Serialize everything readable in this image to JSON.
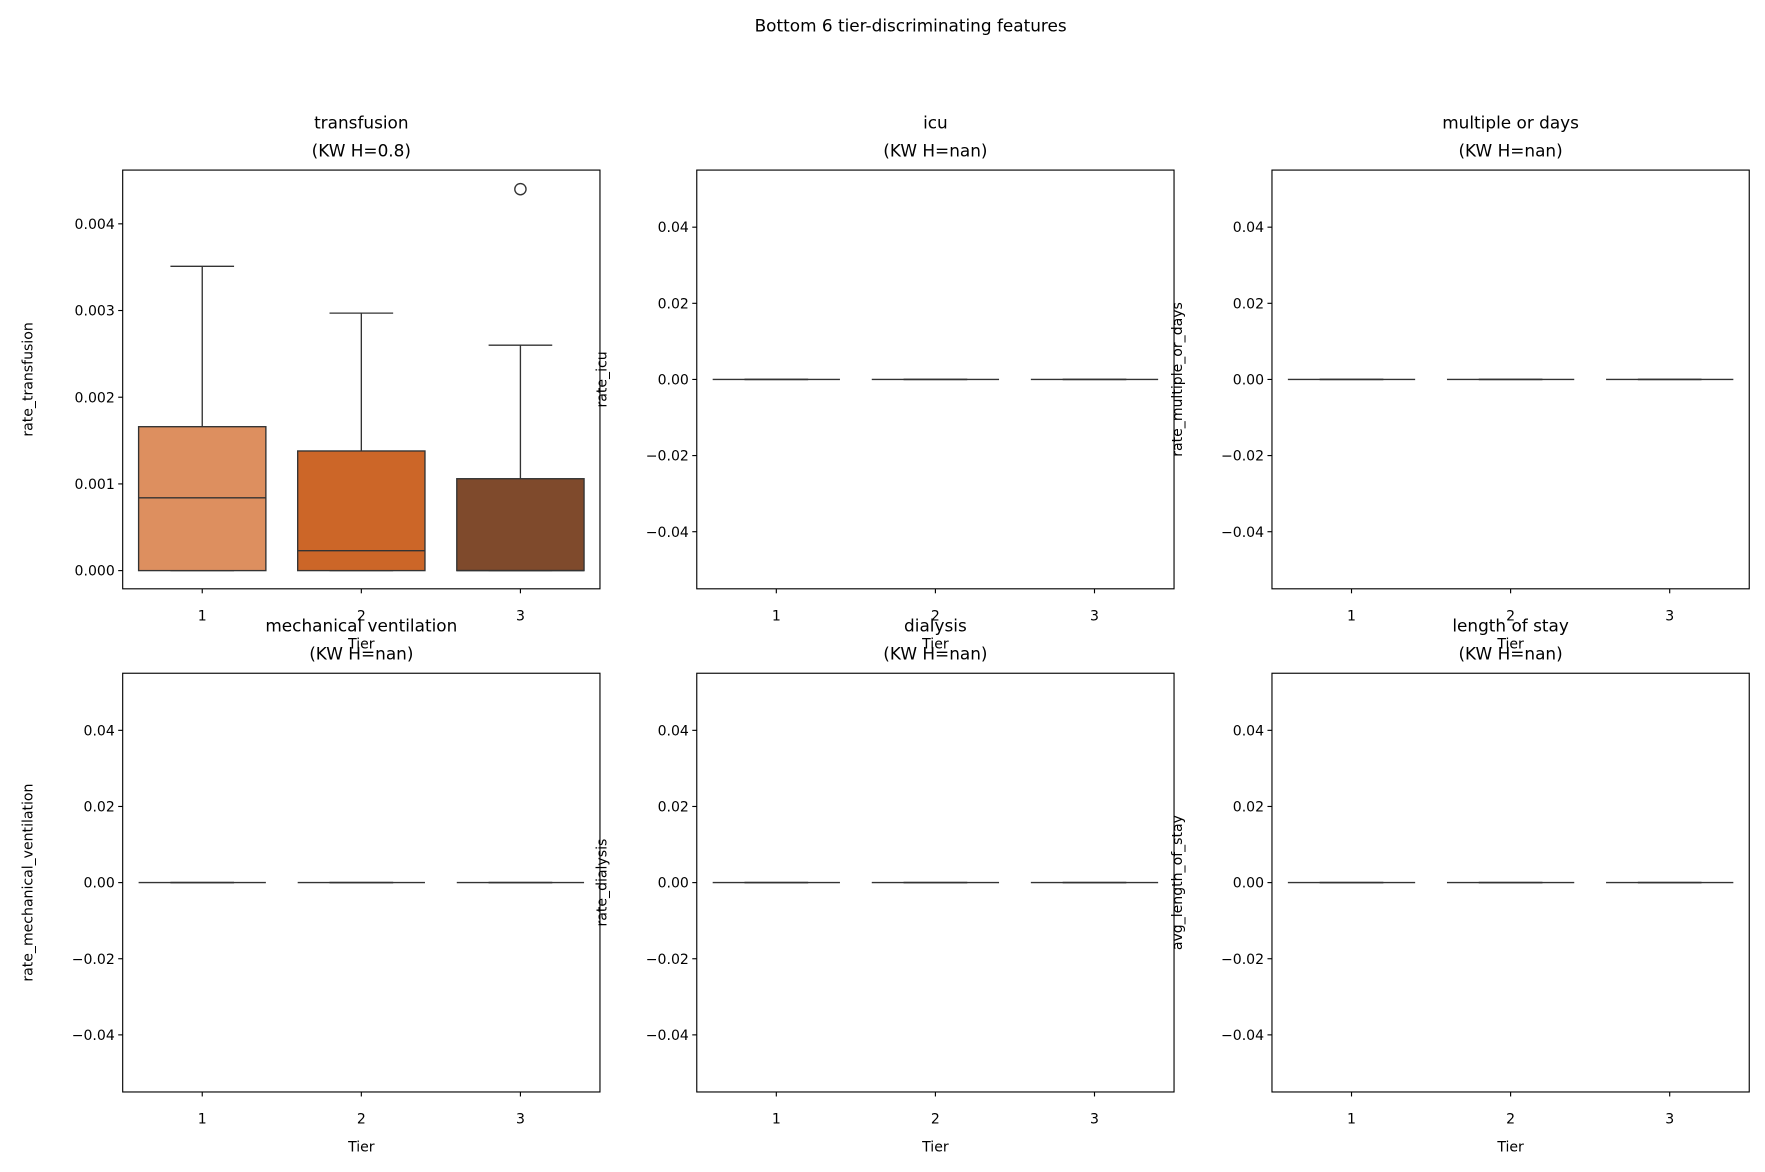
{
  "title": "Bottom 6 tier-discriminating features",
  "chart_data": [
    {
      "type": "box",
      "title": "transfusion",
      "subtitle": "(KW H=0.8)",
      "xlabel": "Tier",
      "ylabel": "rate_transfusion",
      "categories": [
        "1",
        "2",
        "3"
      ],
      "ylim": [
        -0.00021,
        0.00462
      ],
      "yticks": [
        {
          "value": 0,
          "label": "0.000"
        },
        {
          "value": 0.001,
          "label": "0.001"
        },
        {
          "value": 0.002,
          "label": "0.002"
        },
        {
          "value": 0.003,
          "label": "0.003"
        },
        {
          "value": 0.004,
          "label": "0.004"
        }
      ],
      "boxes": [
        {
          "whislo": 0,
          "q1": 0,
          "med": 0.00084,
          "q3": 0.00166,
          "whishi": 0.00351,
          "fliers": [],
          "color": "#dd8f5f"
        },
        {
          "whislo": 0,
          "q1": 0,
          "med": 0.00023,
          "q3": 0.00138,
          "whishi": 0.00297,
          "fliers": [],
          "color": "#cc6628"
        },
        {
          "whislo": 0,
          "q1": 0,
          "med": 0,
          "q3": 0.00106,
          "whishi": 0.0026,
          "fliers": [
            0.0044
          ],
          "color": "#7f4a2c"
        }
      ]
    },
    {
      "type": "box",
      "title": "icu",
      "subtitle": "(KW H=nan)",
      "xlabel": "Tier",
      "ylabel": "rate_icu",
      "categories": [
        "1",
        "2",
        "3"
      ],
      "ylim": [
        -0.055,
        0.055
      ],
      "yticks": [
        {
          "value": -0.04,
          "label": "−0.04"
        },
        {
          "value": -0.02,
          "label": "−0.02"
        },
        {
          "value": 0,
          "label": "0.00"
        },
        {
          "value": 0.02,
          "label": "0.02"
        },
        {
          "value": 0.04,
          "label": "0.04"
        }
      ],
      "boxes": [
        {
          "whislo": 0,
          "q1": 0,
          "med": 0,
          "q3": 0,
          "whishi": 0,
          "fliers": []
        },
        {
          "whislo": 0,
          "q1": 0,
          "med": 0,
          "q3": 0,
          "whishi": 0,
          "fliers": []
        },
        {
          "whislo": 0,
          "q1": 0,
          "med": 0,
          "q3": 0,
          "whishi": 0,
          "fliers": []
        }
      ]
    },
    {
      "type": "box",
      "title": "multiple or days",
      "subtitle": "(KW H=nan)",
      "xlabel": "Tier",
      "ylabel": "rate_multiple_or_days",
      "categories": [
        "1",
        "2",
        "3"
      ],
      "ylim": [
        -0.055,
        0.055
      ],
      "yticks": [
        {
          "value": -0.04,
          "label": "−0.04"
        },
        {
          "value": -0.02,
          "label": "−0.02"
        },
        {
          "value": 0,
          "label": "0.00"
        },
        {
          "value": 0.02,
          "label": "0.02"
        },
        {
          "value": 0.04,
          "label": "0.04"
        }
      ],
      "boxes": [
        {
          "whislo": 0,
          "q1": 0,
          "med": 0,
          "q3": 0,
          "whishi": 0,
          "fliers": []
        },
        {
          "whislo": 0,
          "q1": 0,
          "med": 0,
          "q3": 0,
          "whishi": 0,
          "fliers": []
        },
        {
          "whislo": 0,
          "q1": 0,
          "med": 0,
          "q3": 0,
          "whishi": 0,
          "fliers": []
        }
      ]
    },
    {
      "type": "box",
      "title": "mechanical ventilation",
      "subtitle": "(KW H=nan)",
      "xlabel": "Tier",
      "ylabel": "rate_mechanical_ventilation",
      "categories": [
        "1",
        "2",
        "3"
      ],
      "ylim": [
        -0.055,
        0.055
      ],
      "yticks": [
        {
          "value": -0.04,
          "label": "−0.04"
        },
        {
          "value": -0.02,
          "label": "−0.02"
        },
        {
          "value": 0,
          "label": "0.00"
        },
        {
          "value": 0.02,
          "label": "0.02"
        },
        {
          "value": 0.04,
          "label": "0.04"
        }
      ],
      "boxes": [
        {
          "whislo": 0,
          "q1": 0,
          "med": 0,
          "q3": 0,
          "whishi": 0,
          "fliers": []
        },
        {
          "whislo": 0,
          "q1": 0,
          "med": 0,
          "q3": 0,
          "whishi": 0,
          "fliers": []
        },
        {
          "whislo": 0,
          "q1": 0,
          "med": 0,
          "q3": 0,
          "whishi": 0,
          "fliers": []
        }
      ]
    },
    {
      "type": "box",
      "title": "dialysis",
      "subtitle": "(KW H=nan)",
      "xlabel": "Tier",
      "ylabel": "rate_dialysis",
      "categories": [
        "1",
        "2",
        "3"
      ],
      "ylim": [
        -0.055,
        0.055
      ],
      "yticks": [
        {
          "value": -0.04,
          "label": "−0.04"
        },
        {
          "value": -0.02,
          "label": "−0.02"
        },
        {
          "value": 0,
          "label": "0.00"
        },
        {
          "value": 0.02,
          "label": "0.02"
        },
        {
          "value": 0.04,
          "label": "0.04"
        }
      ],
      "boxes": [
        {
          "whislo": 0,
          "q1": 0,
          "med": 0,
          "q3": 0,
          "whishi": 0,
          "fliers": []
        },
        {
          "whislo": 0,
          "q1": 0,
          "med": 0,
          "q3": 0,
          "whishi": 0,
          "fliers": []
        },
        {
          "whislo": 0,
          "q1": 0,
          "med": 0,
          "q3": 0,
          "whishi": 0,
          "fliers": []
        }
      ]
    },
    {
      "type": "box",
      "title": "length of stay",
      "subtitle": "(KW H=nan)",
      "xlabel": "Tier",
      "ylabel": "avg_length_of_stay",
      "categories": [
        "1",
        "2",
        "3"
      ],
      "ylim": [
        -0.055,
        0.055
      ],
      "yticks": [
        {
          "value": -0.04,
          "label": "−0.04"
        },
        {
          "value": -0.02,
          "label": "−0.02"
        },
        {
          "value": 0,
          "label": "0.00"
        },
        {
          "value": 0.02,
          "label": "0.02"
        },
        {
          "value": 0.04,
          "label": "0.04"
        }
      ],
      "boxes": [
        {
          "whislo": 0,
          "q1": 0,
          "med": 0,
          "q3": 0,
          "whishi": 0,
          "fliers": []
        },
        {
          "whislo": 0,
          "q1": 0,
          "med": 0,
          "q3": 0,
          "whishi": 0,
          "fliers": []
        },
        {
          "whislo": 0,
          "q1": 0,
          "med": 0,
          "q3": 0,
          "whishi": 0,
          "fliers": []
        }
      ]
    }
  ]
}
